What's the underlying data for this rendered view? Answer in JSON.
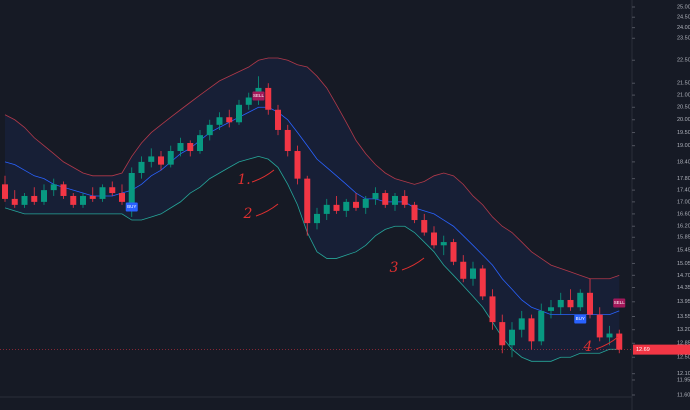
{
  "chart_data": {
    "type": "candlestick",
    "log_scale": true,
    "grid": false,
    "ylim": [
      11.6,
      25
    ],
    "yticks": [
      {
        "value": 25,
        "label": "25.00"
      },
      {
        "value": 24.5,
        "label": "24.50"
      },
      {
        "value": 24,
        "label": "24.00"
      },
      {
        "value": 23.5,
        "label": "23.50"
      },
      {
        "value": 22.5,
        "label": "22.50"
      },
      {
        "value": 21.5,
        "label": "21.50"
      },
      {
        "value": 21,
        "label": "21.00"
      },
      {
        "value": 20.5,
        "label": "20.50"
      },
      {
        "value": 20,
        "label": "20.00"
      },
      {
        "value": 19.5,
        "label": "19.50"
      },
      {
        "value": 19,
        "label": "19.00"
      },
      {
        "value": 18.4,
        "label": "18.40"
      },
      {
        "value": 17.8,
        "label": "17.80"
      },
      {
        "value": 17.4,
        "label": "17.40"
      },
      {
        "value": 17,
        "label": "17.00"
      },
      {
        "value": 16.6,
        "label": "16.60"
      },
      {
        "value": 16.2,
        "label": "16.20"
      },
      {
        "value": 15.85,
        "label": "15.85"
      },
      {
        "value": 15.45,
        "label": "15.45"
      },
      {
        "value": 15.05,
        "label": "15.05"
      },
      {
        "value": 14.7,
        "label": "14.70"
      },
      {
        "value": 14.35,
        "label": "14.35"
      },
      {
        "value": 13.95,
        "label": "13.95"
      },
      {
        "value": 13.55,
        "label": "13.55"
      },
      {
        "value": 13.2,
        "label": "13.20"
      },
      {
        "value": 12.85,
        "label": "12.85"
      },
      {
        "value": 12.5,
        "label": "12.50"
      },
      {
        "value": 12.1,
        "label": "12.10"
      },
      {
        "value": 11.95,
        "label": "11.95"
      },
      {
        "value": 11.6,
        "label": "11.60"
      }
    ],
    "up_color": "#089981",
    "down_color": "#f23645",
    "open": [
      17.6,
      17.1,
      16.9,
      17.2,
      17.0,
      17.4,
      17.6,
      17.2,
      16.9,
      17.2,
      17.1,
      17.5,
      17.3,
      16.7,
      18.0,
      18.4,
      18.6,
      18.3,
      18.8,
      19.1,
      18.8,
      19.4,
      19.8,
      20.1,
      19.9,
      20.6,
      20.9,
      21.3,
      20.4,
      19.6,
      18.8,
      17.8,
      16.3,
      16.6,
      16.9,
      16.7,
      17.0,
      16.8,
      17.1,
      17.3,
      16.9,
      17.2,
      16.9,
      16.4,
      16.0,
      15.6,
      15.7,
      15.1,
      14.6,
      14.9,
      14.1,
      13.4,
      12.8,
      13.2,
      13.5,
      12.9,
      13.7,
      13.8,
      14.0,
      13.8,
      14.2,
      13.6,
      13.0,
      13.1
    ],
    "high": [
      17.9,
      17.4,
      17.3,
      17.5,
      17.6,
      17.8,
      17.7,
      17.3,
      17.3,
      17.5,
      17.6,
      17.7,
      17.6,
      18.2,
      18.6,
      18.9,
      18.8,
      19.0,
      19.3,
      19.2,
      19.6,
      20.0,
      20.3,
      20.4,
      20.8,
      21.1,
      21.8,
      21.5,
      20.6,
      19.8,
      19.0,
      17.9,
      16.8,
      17.1,
      17.2,
      17.1,
      17.3,
      17.2,
      17.5,
      17.4,
      17.3,
      17.4,
      17.0,
      16.6,
      16.2,
      15.9,
      15.8,
      15.3,
      15.1,
      15.0,
      14.3,
      13.6,
      13.4,
      13.7,
      13.6,
      13.9,
      14.0,
      14.2,
      14.3,
      14.3,
      14.6,
      13.8,
      13.3,
      13.2
    ],
    "low": [
      17.0,
      16.8,
      16.8,
      16.9,
      16.9,
      17.2,
      17.1,
      16.8,
      16.8,
      17.0,
      17.0,
      17.2,
      16.9,
      16.5,
      17.8,
      18.2,
      18.1,
      18.2,
      18.6,
      18.6,
      18.7,
      19.2,
      19.6,
      19.7,
      19.8,
      20.4,
      20.6,
      20.2,
      19.4,
      18.6,
      17.6,
      15.9,
      16.1,
      16.4,
      16.6,
      16.5,
      16.7,
      16.6,
      16.9,
      16.8,
      16.7,
      16.8,
      16.3,
      15.9,
      15.5,
      15.3,
      15.0,
      14.5,
      14.4,
      14.0,
      13.2,
      12.6,
      12.5,
      13.0,
      12.7,
      12.8,
      13.5,
      13.6,
      13.7,
      13.7,
      13.5,
      12.9,
      12.8,
      12.6
    ],
    "close": [
      17.1,
      16.9,
      17.2,
      17.0,
      17.4,
      17.6,
      17.2,
      16.9,
      17.2,
      17.1,
      17.5,
      17.3,
      17.0,
      18.0,
      18.4,
      18.6,
      18.3,
      18.8,
      19.1,
      18.8,
      19.4,
      19.8,
      20.1,
      19.9,
      20.6,
      20.9,
      21.3,
      20.4,
      19.6,
      18.8,
      17.8,
      16.3,
      16.6,
      16.9,
      16.7,
      17.0,
      16.8,
      17.1,
      17.3,
      16.9,
      17.2,
      16.9,
      16.4,
      16.0,
      15.6,
      15.7,
      15.1,
      14.6,
      14.9,
      14.1,
      13.4,
      12.8,
      13.2,
      13.5,
      12.9,
      13.7,
      13.8,
      14.0,
      13.8,
      14.2,
      13.6,
      13.0,
      13.1,
      12.69
    ],
    "price_label": "12.69",
    "series": [
      {
        "name": "upper",
        "color": "#b2394a",
        "values": [
          20.2,
          20.0,
          19.7,
          19.3,
          19.0,
          18.7,
          18.4,
          18.2,
          18.0,
          17.9,
          17.9,
          17.9,
          18.0,
          18.6,
          19.1,
          19.5,
          19.8,
          20.1,
          20.4,
          20.7,
          21.0,
          21.3,
          21.6,
          21.8,
          22.0,
          22.2,
          22.5,
          22.6,
          22.6,
          22.5,
          22.3,
          22.2,
          21.8,
          21.3,
          20.6,
          19.9,
          19.2,
          18.7,
          18.3,
          18.0,
          17.8,
          17.7,
          17.6,
          17.7,
          17.9,
          18.0,
          17.9,
          17.6,
          17.2,
          16.9,
          16.5,
          16.2,
          16.0,
          15.7,
          15.4,
          15.2,
          15.0,
          14.9,
          14.8,
          14.7,
          14.6,
          14.6,
          14.6,
          14.7
        ]
      },
      {
        "name": "basis",
        "color": "#2962ff",
        "values": [
          18.4,
          18.3,
          18.1,
          17.9,
          17.8,
          17.6,
          17.5,
          17.4,
          17.3,
          17.2,
          17.2,
          17.2,
          17.3,
          17.4,
          17.6,
          17.9,
          18.1,
          18.4,
          18.7,
          18.9,
          19.2,
          19.5,
          19.7,
          19.9,
          20.1,
          20.3,
          20.5,
          20.5,
          20.3,
          20.0,
          19.5,
          19.0,
          18.5,
          18.2,
          17.9,
          17.6,
          17.3,
          17.1,
          17.1,
          17.0,
          17.0,
          17.0,
          16.8,
          16.7,
          16.6,
          16.4,
          16.2,
          15.9,
          15.6,
          15.3,
          15.0,
          14.6,
          14.3,
          14.0,
          13.8,
          13.7,
          13.6,
          13.6,
          13.6,
          13.6,
          13.6,
          13.6,
          13.6,
          13.7
        ]
      },
      {
        "name": "lower",
        "color": "#26a69a",
        "values": [
          16.8,
          16.7,
          16.6,
          16.6,
          16.6,
          16.6,
          16.6,
          16.6,
          16.6,
          16.6,
          16.6,
          16.6,
          16.6,
          16.4,
          16.4,
          16.5,
          16.6,
          16.8,
          17.0,
          17.3,
          17.5,
          17.8,
          18.0,
          18.2,
          18.4,
          18.5,
          18.6,
          18.5,
          18.2,
          17.6,
          16.9,
          16.0,
          15.4,
          15.2,
          15.2,
          15.3,
          15.4,
          15.6,
          15.9,
          16.1,
          16.2,
          16.2,
          16.0,
          15.7,
          15.4,
          15.0,
          14.7,
          14.4,
          14.1,
          13.8,
          13.4,
          13.0,
          12.7,
          12.5,
          12.4,
          12.4,
          12.4,
          12.5,
          12.5,
          12.6,
          12.6,
          12.6,
          12.7,
          12.7
        ]
      }
    ],
    "annotations": [
      "BUY",
      "SELL",
      "BUY",
      "SELL",
      "1.",
      "2",
      "3",
      "4"
    ]
  }
}
